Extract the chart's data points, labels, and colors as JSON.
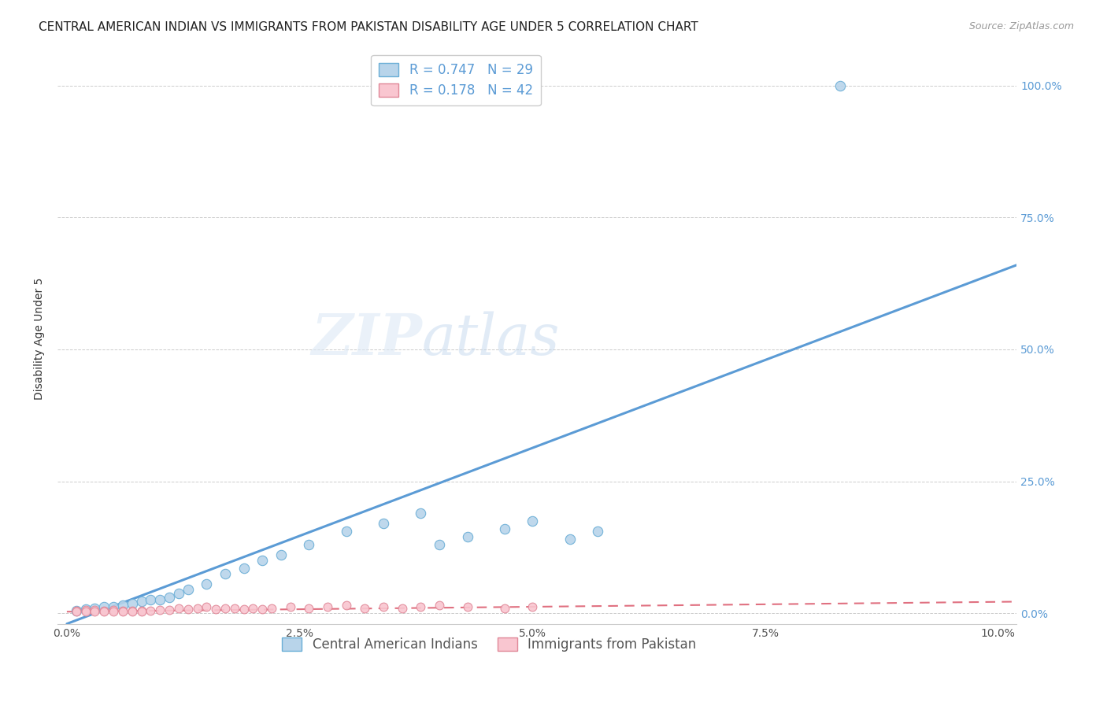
{
  "title": "CENTRAL AMERICAN INDIAN VS IMMIGRANTS FROM PAKISTAN DISABILITY AGE UNDER 5 CORRELATION CHART",
  "source": "Source: ZipAtlas.com",
  "ylabel": "Disability Age Under 5",
  "xlim": [
    -0.001,
    0.102
  ],
  "ylim": [
    -0.02,
    1.06
  ],
  "xtick_labels": [
    "0.0%",
    "2.5%",
    "5.0%",
    "7.5%",
    "10.0%"
  ],
  "xtick_values": [
    0.0,
    0.025,
    0.05,
    0.075,
    0.1
  ],
  "ytick_labels_right": [
    "0.0%",
    "25.0%",
    "50.0%",
    "75.0%",
    "100.0%"
  ],
  "ytick_values": [
    0.0,
    0.25,
    0.5,
    0.75,
    1.0
  ],
  "blue_R": 0.747,
  "blue_N": 29,
  "pink_R": 0.178,
  "pink_N": 42,
  "blue_scatter_color": "#b8d4ea",
  "blue_edge_color": "#6aaed6",
  "blue_line_color": "#5b9bd5",
  "pink_scatter_color": "#f9c6d0",
  "pink_edge_color": "#e08898",
  "pink_line_color": "#e07080",
  "watermark_zip": "ZIP",
  "watermark_atlas": "atlas",
  "legend_label_blue": "Central American Indians",
  "legend_label_pink": "Immigrants from Pakistan",
  "blue_scatter_x": [
    0.001,
    0.002,
    0.003,
    0.004,
    0.005,
    0.006,
    0.007,
    0.008,
    0.009,
    0.01,
    0.011,
    0.012,
    0.013,
    0.015,
    0.017,
    0.019,
    0.021,
    0.023,
    0.026,
    0.03,
    0.034,
    0.038,
    0.04,
    0.043,
    0.047,
    0.05,
    0.054,
    0.057,
    0.083
  ],
  "blue_scatter_y": [
    0.005,
    0.008,
    0.01,
    0.012,
    0.012,
    0.015,
    0.018,
    0.022,
    0.025,
    0.025,
    0.03,
    0.038,
    0.045,
    0.055,
    0.075,
    0.085,
    0.1,
    0.11,
    0.13,
    0.155,
    0.17,
    0.19,
    0.13,
    0.145,
    0.16,
    0.175,
    0.14,
    0.155,
    1.0
  ],
  "pink_scatter_x": [
    0.001,
    0.001,
    0.002,
    0.002,
    0.003,
    0.003,
    0.004,
    0.004,
    0.005,
    0.005,
    0.006,
    0.006,
    0.007,
    0.007,
    0.008,
    0.008,
    0.009,
    0.01,
    0.011,
    0.012,
    0.013,
    0.014,
    0.015,
    0.016,
    0.017,
    0.018,
    0.019,
    0.02,
    0.021,
    0.022,
    0.024,
    0.026,
    0.028,
    0.03,
    0.032,
    0.034,
    0.036,
    0.038,
    0.04,
    0.043,
    0.047,
    0.05
  ],
  "pink_scatter_y": [
    0.005,
    0.003,
    0.006,
    0.003,
    0.006,
    0.003,
    0.005,
    0.003,
    0.006,
    0.003,
    0.005,
    0.003,
    0.005,
    0.003,
    0.005,
    0.003,
    0.005,
    0.006,
    0.006,
    0.01,
    0.008,
    0.01,
    0.012,
    0.008,
    0.01,
    0.01,
    0.008,
    0.01,
    0.008,
    0.01,
    0.012,
    0.01,
    0.012,
    0.015,
    0.01,
    0.012,
    0.01,
    0.012,
    0.015,
    0.012,
    0.01,
    0.012
  ],
  "title_fontsize": 11,
  "axis_label_fontsize": 10,
  "tick_fontsize": 10,
  "legend_fontsize": 12,
  "blue_line_x0": 0.0,
  "blue_line_y0": -0.02,
  "blue_line_x1": 0.102,
  "blue_line_y1": 0.66,
  "pink_line_x0": 0.0,
  "pink_line_y0": 0.003,
  "pink_line_x1": 0.102,
  "pink_line_y1": 0.022
}
